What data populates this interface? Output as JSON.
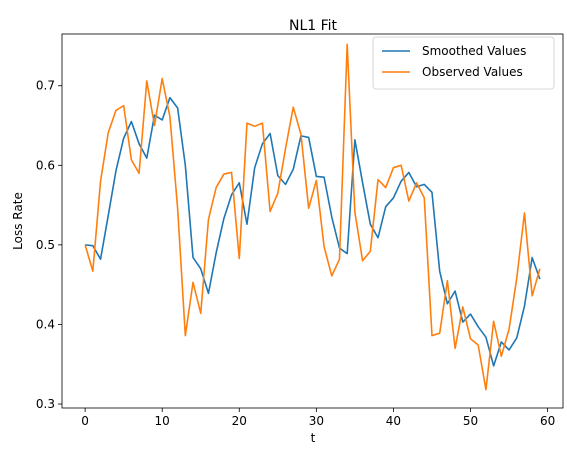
{
  "chart_data": {
    "type": "line",
    "title": "NL1 Fit",
    "xlabel": "t",
    "ylabel": "Loss Rate",
    "xlim": [
      -3,
      62
    ],
    "ylim": [
      0.295,
      0.765
    ],
    "xticks": [
      0,
      10,
      20,
      30,
      40,
      50,
      60
    ],
    "yticks": [
      0.3,
      0.4,
      0.5,
      0.6,
      0.7
    ],
    "grid": false,
    "legend_position": "top-right",
    "x": [
      0,
      1,
      2,
      3,
      4,
      5,
      6,
      7,
      8,
      9,
      10,
      11,
      12,
      13,
      14,
      15,
      16,
      17,
      18,
      19,
      20,
      21,
      22,
      23,
      24,
      25,
      26,
      27,
      28,
      29,
      30,
      31,
      32,
      33,
      34,
      35,
      36,
      37,
      38,
      39,
      40,
      41,
      42,
      43,
      44,
      45,
      46,
      47,
      48,
      49,
      50,
      51,
      52,
      53,
      54,
      55,
      56,
      57,
      58,
      59
    ],
    "series": [
      {
        "name": "Smoothed Values",
        "color": "#1f77b4",
        "values": [
          0.5,
          0.499,
          0.482,
          0.537,
          0.593,
          0.634,
          0.655,
          0.627,
          0.609,
          0.663,
          0.657,
          0.685,
          0.672,
          0.6,
          0.484,
          0.47,
          0.439,
          0.49,
          0.533,
          0.563,
          0.578,
          0.526,
          0.597,
          0.627,
          0.64,
          0.587,
          0.576,
          0.595,
          0.637,
          0.635,
          0.586,
          0.585,
          0.535,
          0.496,
          0.489,
          0.632,
          0.578,
          0.526,
          0.509,
          0.548,
          0.559,
          0.58,
          0.591,
          0.573,
          0.576,
          0.566,
          0.467,
          0.426,
          0.442,
          0.403,
          0.413,
          0.397,
          0.384,
          0.348,
          0.378,
          0.368,
          0.383,
          0.423,
          0.484,
          0.457
        ]
      },
      {
        "name": "Observed Values",
        "color": "#ff7f0e",
        "values": [
          0.5,
          0.467,
          0.58,
          0.641,
          0.669,
          0.675,
          0.607,
          0.59,
          0.706,
          0.65,
          0.709,
          0.661,
          0.546,
          0.386,
          0.453,
          0.414,
          0.532,
          0.572,
          0.589,
          0.591,
          0.483,
          0.653,
          0.649,
          0.653,
          0.542,
          0.565,
          0.621,
          0.673,
          0.639,
          0.546,
          0.581,
          0.498,
          0.461,
          0.482,
          0.752,
          0.541,
          0.48,
          0.492,
          0.582,
          0.572,
          0.597,
          0.6,
          0.555,
          0.578,
          0.559,
          0.386,
          0.389,
          0.455,
          0.37,
          0.422,
          0.382,
          0.374,
          0.318,
          0.404,
          0.36,
          0.394,
          0.458,
          0.54,
          0.436,
          0.47
        ]
      }
    ]
  }
}
